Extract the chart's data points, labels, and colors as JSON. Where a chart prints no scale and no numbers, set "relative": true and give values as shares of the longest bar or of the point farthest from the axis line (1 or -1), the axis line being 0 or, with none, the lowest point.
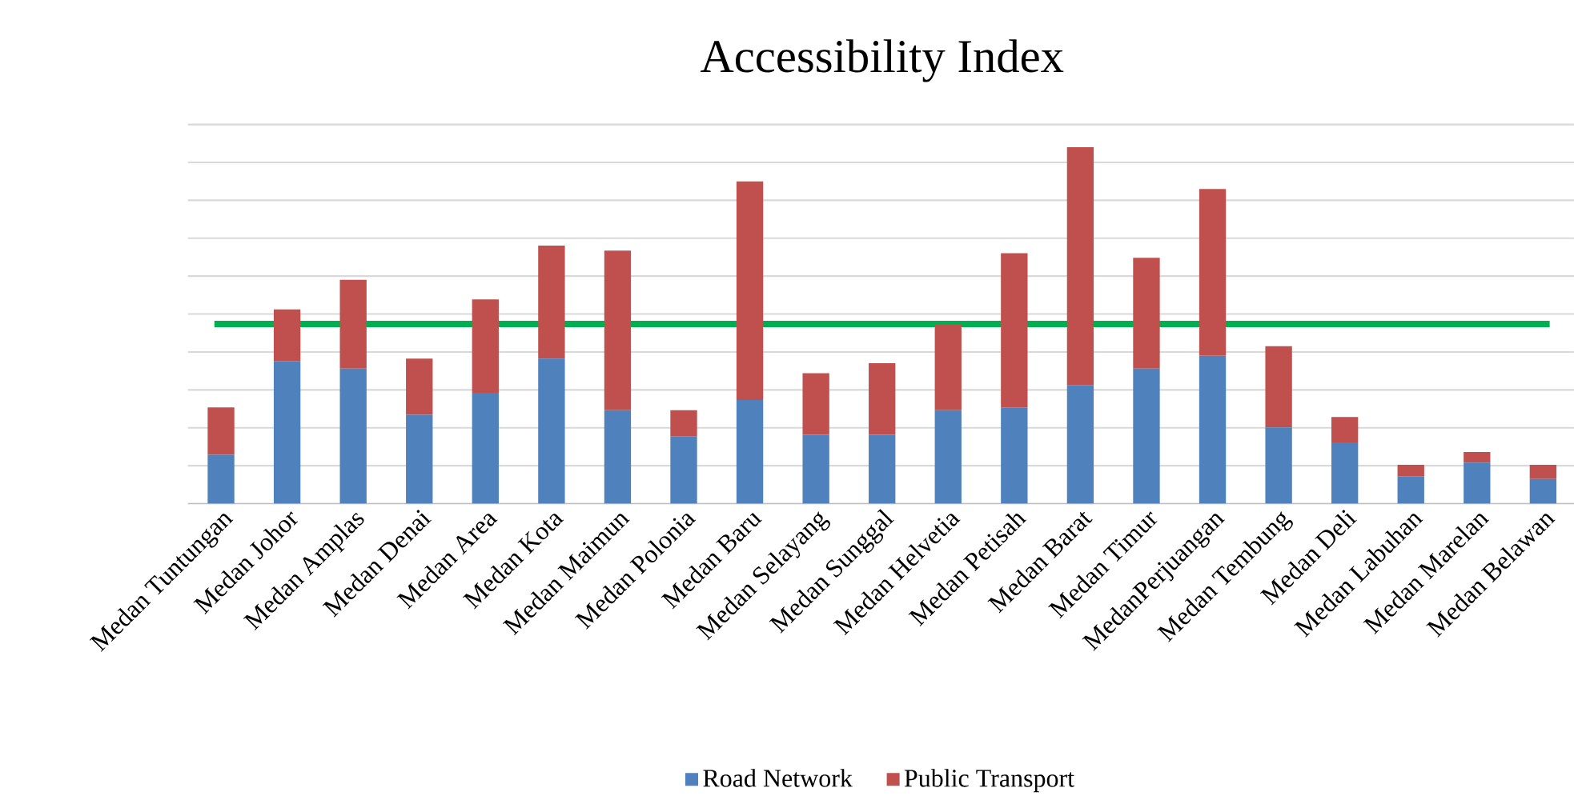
{
  "chart_data": {
    "type": "bar",
    "title": "Accessibility  Index",
    "stacked": true,
    "relative": true,
    "grid": "y",
    "legend": "bottom",
    "categories": [
      "Medan Tuntungan",
      "Medan Johor",
      "Medan Amplas",
      "Medan Denai",
      "Medan Area",
      "Medan Kota",
      "Medan Maimun",
      "Medan Polonia",
      "Medan Baru",
      "Medan Selayang",
      "Medan Sunggal",
      "Medan Helvetia",
      "Medan Petisah",
      "Medan Barat",
      "Medan Timur",
      "MedanPerjuangan",
      "Medan Tembung",
      "Medan Deli",
      "Medan Labuhan",
      "Medan Marelan",
      "Medan Belawan"
    ],
    "series": [
      {
        "name": "Road Network",
        "color": "#4f81bd",
        "values": [
          0.137,
          0.4,
          0.379,
          0.249,
          0.311,
          0.407,
          0.262,
          0.188,
          0.291,
          0.193,
          0.193,
          0.262,
          0.27,
          0.332,
          0.379,
          0.415,
          0.214,
          0.172,
          0.077,
          0.115,
          0.069
        ]
      },
      {
        "name": "Public Transport",
        "color": "#c0504d",
        "values": [
          0.133,
          0.145,
          0.249,
          0.158,
          0.262,
          0.317,
          0.448,
          0.074,
          0.613,
          0.173,
          0.201,
          0.242,
          0.433,
          0.668,
          0.311,
          0.468,
          0.228,
          0.071,
          0.032,
          0.03,
          0.04
        ]
      }
    ],
    "ref_lines": [
      {
        "axis": "y",
        "value": 0.504,
        "color": "#00b050"
      }
    ]
  }
}
